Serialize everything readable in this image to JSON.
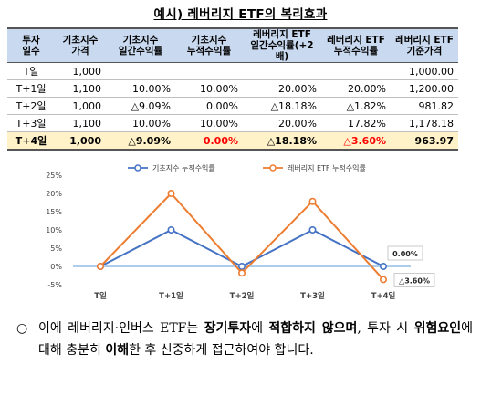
{
  "title": "예시) 레버리지 ETF의 복리효과",
  "table": {
    "headers": [
      [
        "투자",
        "일수"
      ],
      [
        "기초지수",
        "가격"
      ],
      [
        "기초지수",
        "일간수익률"
      ],
      [
        "기초지수",
        "누적수익률"
      ],
      [
        "레버리지 ETF",
        "일간수익률(+2배)"
      ],
      [
        "레버리지 ETF",
        "누적수익률"
      ],
      [
        "레버리지 ETF",
        "기준가격"
      ]
    ],
    "rows": [
      [
        "T일",
        "1,000",
        "",
        "",
        "",
        "",
        "1,000.00"
      ],
      [
        "T+1일",
        "1,100",
        "10.00%",
        "10.00%",
        "20.00%",
        "20.00%",
        "1,200.00"
      ],
      [
        "T+2일",
        "1,000",
        "△9.09%",
        "0.00%",
        "△18.18%",
        "△1.82%",
        "981.82"
      ],
      [
        "T+3일",
        "1,100",
        "10.00%",
        "10.00%",
        "20.00%",
        "17.82%",
        "1,178.18"
      ],
      [
        "T+4일",
        "1,000",
        "△9.09%",
        "0.00%",
        "△18.18%",
        "△3.60%",
        "963.97"
      ]
    ]
  },
  "chart_data": {
    "type": "line",
    "categories": [
      "T일",
      "T+1일",
      "T+2일",
      "T+3일",
      "T+4일"
    ],
    "series": [
      {
        "name": "기초지수 누적수익률",
        "values": [
          0,
          10,
          0,
          10,
          0
        ],
        "color": "#4472c4"
      },
      {
        "name": "레버리지 ETF 누적수익률",
        "values": [
          0,
          20,
          -1.82,
          17.82,
          -3.6
        ],
        "color": "#ed7d31"
      }
    ],
    "y_ticks": [
      "25%",
      "20%",
      "15%",
      "10%",
      "5%",
      "0%",
      "-5%"
    ],
    "ylim": [
      -5,
      25
    ],
    "annotations": [
      "0.00%",
      "△3.60%"
    ],
    "legend_position": "top"
  },
  "note": {
    "bullet": "○",
    "parts": [
      {
        "text": "이에 레버리지·인버스 ETF는 ",
        "bold": false
      },
      {
        "text": "장기투자",
        "bold": true
      },
      {
        "text": "에 ",
        "bold": false
      },
      {
        "text": "적합하지 않으며",
        "bold": true
      },
      {
        "text": ", 투자 시 ",
        "bold": false
      },
      {
        "text": "위험요인",
        "bold": true
      },
      {
        "text": "에 대해 충분히 ",
        "bold": false
      },
      {
        "text": "이해",
        "bold": true
      },
      {
        "text": "한 후 신중하게 접근하여야 합니다.",
        "bold": false
      }
    ]
  }
}
